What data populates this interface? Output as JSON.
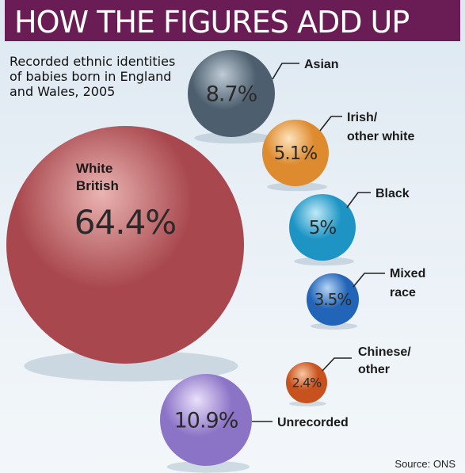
{
  "title": "HOW THE FIGURES ADD UP",
  "source": "Source: ONS",
  "chart_data": {
    "type": "bubble",
    "title": "HOW THE FIGURES ADD UP",
    "subtitle": "Recorded ethnic identities of babies born in England and Wales, 2005",
    "unit": "%",
    "slices": [
      {
        "label": "White British",
        "value": 64.4,
        "value_text": "64.4%",
        "color": "#a8474d",
        "color_light": "#eab4b2"
      },
      {
        "label": "Asian",
        "value": 8.7,
        "value_text": "8.7%",
        "color": "#4d5f6e",
        "color_light": "#bfccd7"
      },
      {
        "label": "Irish/ other white",
        "value": 5.1,
        "value_text": "5.1%",
        "color": "#de8a2e",
        "color_light": "#fde4bd"
      },
      {
        "label": "Black",
        "value": 5,
        "value_text": "5%",
        "color": "#1d94c4",
        "color_light": "#bfeaf7"
      },
      {
        "label": "Mixed race",
        "value": 3.5,
        "value_text": "3.5%",
        "color": "#2264b7",
        "color_light": "#b5d6f4"
      },
      {
        "label": "Chinese/ other",
        "value": 2.4,
        "value_text": "2.4%",
        "color": "#c8521d",
        "color_light": "#f8c7a3"
      },
      {
        "label": "Unrecorded",
        "value": 10.9,
        "value_text": "10.9%",
        "color": "#8b73c6",
        "color_light": "#eae0fb"
      }
    ]
  }
}
